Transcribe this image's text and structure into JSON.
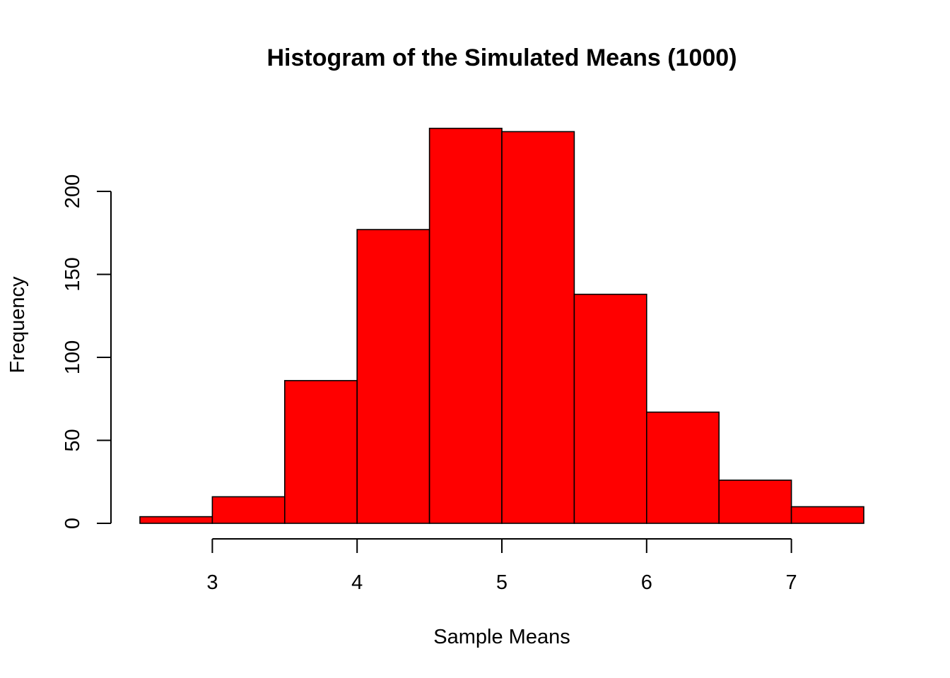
{
  "chart_data": {
    "type": "bar",
    "subtype": "histogram",
    "title": "Histogram of the Simulated Means (1000)",
    "xlabel": "Sample Means",
    "ylabel": "Frequency",
    "bin_edges": [
      2.5,
      3.0,
      3.5,
      4.0,
      4.5,
      5.0,
      5.5,
      6.0,
      6.5,
      7.0,
      7.5
    ],
    "values": [
      4,
      16,
      86,
      177,
      238,
      236,
      138,
      67,
      26,
      10
    ],
    "xlim": [
      2.5,
      7.5
    ],
    "ylim": [
      0,
      240
    ],
    "x_ticks": [
      3,
      4,
      5,
      6,
      7
    ],
    "x_tick_labels": [
      "3",
      "4",
      "5",
      "6",
      "7"
    ],
    "y_ticks": [
      0,
      50,
      100,
      150,
      200
    ],
    "y_tick_labels": [
      "0",
      "50",
      "100",
      "150",
      "200"
    ],
    "bar_color": "#ff0000",
    "border_color": "#000000",
    "grid": false,
    "legend": "none"
  }
}
